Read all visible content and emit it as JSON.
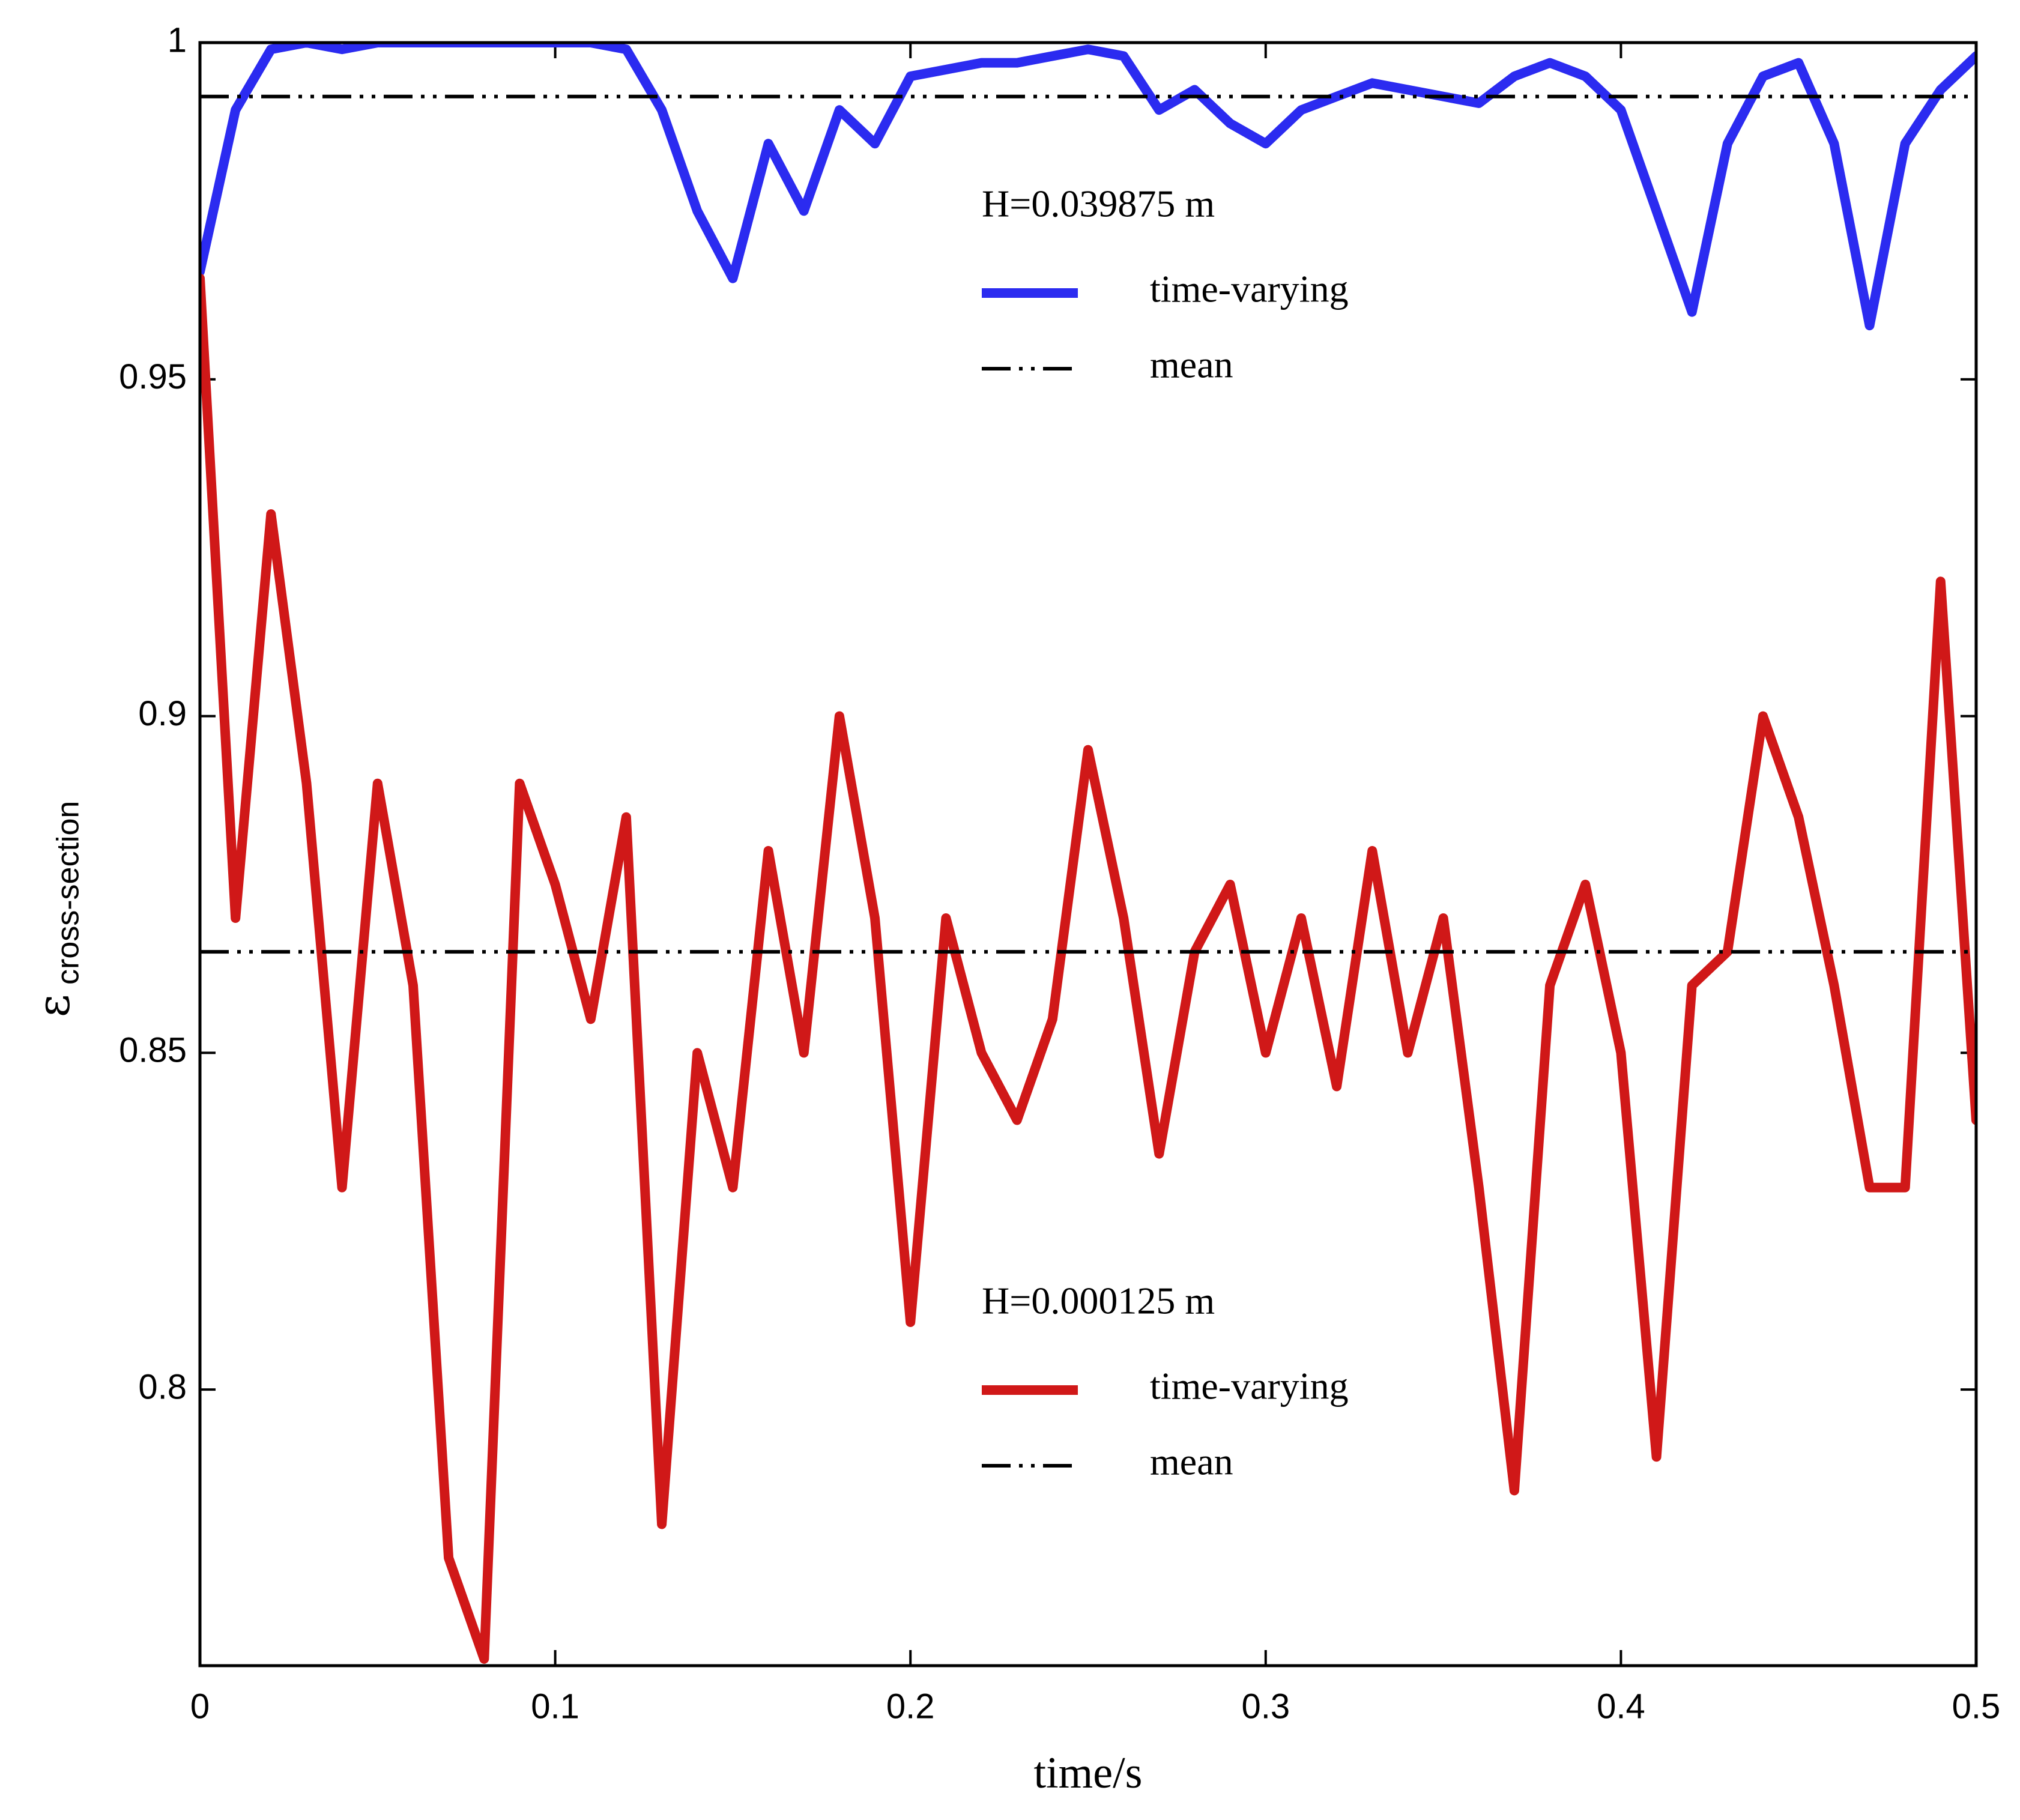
{
  "chart_data": {
    "type": "line",
    "xlabel": "time/s",
    "ylabel": "ε",
    "ylabel_sub": "cross-section",
    "x": [
      0,
      0.01,
      0.02,
      0.03,
      0.04,
      0.05,
      0.06,
      0.07,
      0.08,
      0.09,
      0.1,
      0.11,
      0.12,
      0.13,
      0.14,
      0.15,
      0.16,
      0.17,
      0.18,
      0.19,
      0.2,
      0.21,
      0.22,
      0.23,
      0.24,
      0.25,
      0.26,
      0.27,
      0.28,
      0.29,
      0.3,
      0.31,
      0.32,
      0.33,
      0.34,
      0.35,
      0.36,
      0.37,
      0.38,
      0.39,
      0.4,
      0.41,
      0.42,
      0.43,
      0.44,
      0.45,
      0.46,
      0.47,
      0.48,
      0.49,
      0.5
    ],
    "series": [
      {
        "name": "time-varying",
        "color": "#2b2bf0",
        "values": [
          0.966,
          0.99,
          0.999,
          1.0,
          0.999,
          1.0,
          1.0,
          1.0,
          1.0,
          1.0,
          1.0,
          1.0,
          0.999,
          0.99,
          0.975,
          0.965,
          0.985,
          0.975,
          0.99,
          0.985,
          0.995,
          0.996,
          0.997,
          0.997,
          0.998,
          0.999,
          0.998,
          0.99,
          0.993,
          0.988,
          0.985,
          0.99,
          0.992,
          0.994,
          0.993,
          0.992,
          0.991,
          0.995,
          0.997,
          0.995,
          0.99,
          0.975,
          0.96,
          0.985,
          0.995,
          0.997,
          0.985,
          0.958,
          0.985,
          0.993,
          0.998
        ]
      },
      {
        "name": "mean",
        "color": "#000000",
        "value": 0.992,
        "style": "dash-dot-dot"
      },
      {
        "name": "time-varying",
        "color": "#d01818",
        "values": [
          0.965,
          0.87,
          0.93,
          0.89,
          0.83,
          0.89,
          0.86,
          0.775,
          0.76,
          0.89,
          0.875,
          0.855,
          0.885,
          0.78,
          0.85,
          0.83,
          0.88,
          0.85,
          0.9,
          0.87,
          0.81,
          0.87,
          0.85,
          0.84,
          0.855,
          0.895,
          0.87,
          0.835,
          0.865,
          0.875,
          0.85,
          0.87,
          0.845,
          0.88,
          0.85,
          0.87,
          0.83,
          0.785,
          0.86,
          0.875,
          0.85,
          0.79,
          0.86,
          0.865,
          0.9,
          0.885,
          0.86,
          0.83,
          0.83,
          0.92,
          0.84
        ]
      },
      {
        "name": "mean",
        "color": "#000000",
        "value": 0.865,
        "style": "dash-dot-dot"
      }
    ],
    "legend_groups": [
      {
        "title": "H=0.039875 m",
        "series": [
          0,
          1
        ]
      },
      {
        "title": "H=0.000125 m",
        "series": [
          2,
          3
        ]
      }
    ],
    "xlim": [
      0,
      0.5
    ],
    "xticks": [
      0,
      0.1,
      0.2,
      0.3,
      0.4,
      0.5
    ],
    "ylim": [
      0.759,
      1
    ],
    "yticks": [
      0.8,
      0.85,
      0.9,
      0.95,
      1
    ]
  }
}
